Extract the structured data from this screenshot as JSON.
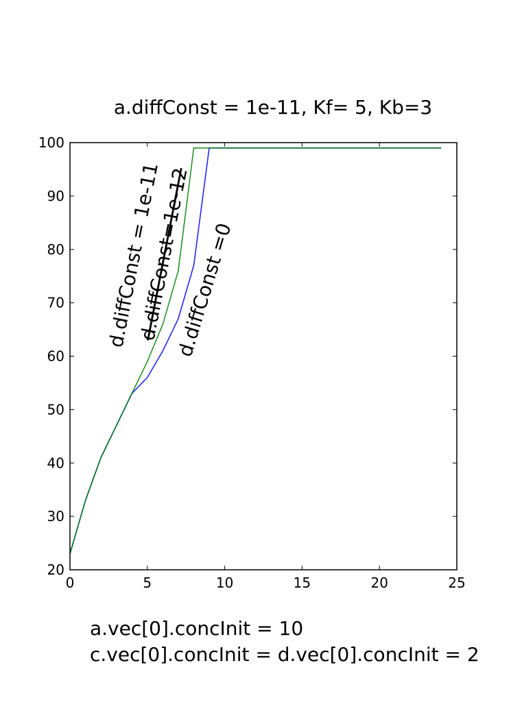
{
  "chart_data": {
    "type": "line",
    "title": "a.diffConst = 1e-11, Kf= 5, Kb=3",
    "xlabel": "",
    "ylabel": "",
    "xlim": [
      0,
      25
    ],
    "ylim": [
      20,
      100
    ],
    "xticks": [
      0,
      5,
      10,
      15,
      20,
      25
    ],
    "yticks": [
      20,
      30,
      40,
      50,
      60,
      70,
      80,
      90,
      100
    ],
    "grid": false,
    "series": [
      {
        "color": "#0000ff",
        "x": [
          0,
          1,
          2,
          3,
          4,
          5,
          6,
          7,
          8,
          9,
          10,
          11,
          12,
          13,
          14,
          15,
          16,
          17,
          18,
          19,
          20,
          21,
          22,
          23,
          24
        ],
        "y": [
          23,
          33,
          41,
          47,
          53,
          56,
          61,
          67,
          77,
          99,
          99,
          99,
          99,
          99,
          99,
          99,
          99,
          99,
          99,
          99,
          99,
          99,
          99,
          99,
          99
        ]
      },
      {
        "color": "#008000",
        "x": [
          0,
          1,
          2,
          3,
          4,
          5,
          6,
          7,
          8,
          9,
          10,
          11,
          12,
          13,
          14,
          15,
          16,
          17,
          18,
          19,
          20,
          21,
          22,
          23,
          24
        ],
        "y": [
          23,
          33,
          41,
          47,
          53,
          59,
          66,
          76,
          99,
          99,
          99,
          99,
          99,
          99,
          99,
          99,
          99,
          99,
          99,
          99,
          99,
          99,
          99,
          99,
          99
        ]
      }
    ],
    "annotations": [
      {
        "text": "d.diffConst = 1e-11",
        "strike": false
      },
      {
        "text": "d.diffConst=1e-12",
        "strike": true
      },
      {
        "text": "d.diffConst =0",
        "strike": false
      }
    ]
  },
  "caption": {
    "line1": "a.vec[0].concInit = 10",
    "line2": "c.vec[0].concInit = d.vec[0].concInit = 2"
  }
}
